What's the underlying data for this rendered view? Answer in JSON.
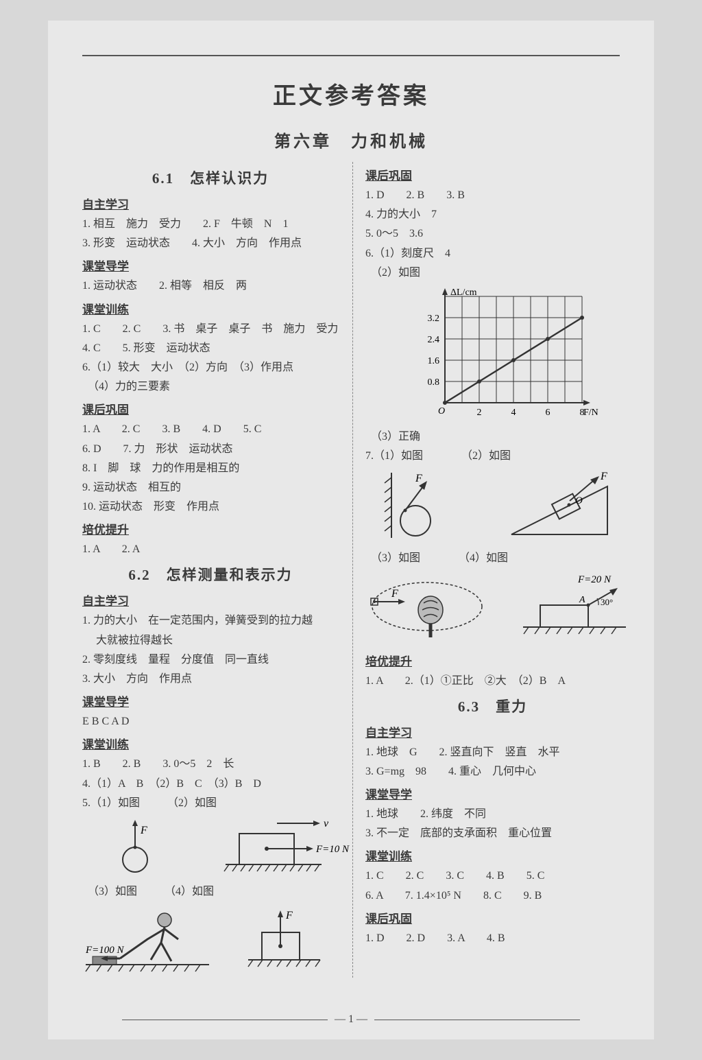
{
  "mainTitle": "正文参考答案",
  "chapterTitle": "第六章　力和机械",
  "footer": "— 1 —",
  "left": {
    "s61_title": "6.1　怎样认识力",
    "h_zzxx": "自主学习",
    "s61_zz_1": "1. 相互　施力　受力　　2. F　牛顿　N　1",
    "s61_zz_2": "3. 形变　运动状态　　4. 大小　方向　作用点",
    "h_ktdx": "课堂导学",
    "s61_dx_1": "1. 运动状态　　2. 相等　相反　两",
    "h_ktxl": "课堂训练",
    "s61_xl_1": "1. C　　2. C　　3. 书　桌子　桌子　书　施力　受力",
    "s61_xl_2": "4. C　　5. 形变　运动状态",
    "s61_xl_3": "6.（1）较大　大小　（2）方向　（3）作用点",
    "s61_xl_4": "　（4）力的三要素",
    "h_khgg": "课后巩固",
    "s61_gg_1": "1. A　　2. C　　3. B　　4. D　　5. C",
    "s61_gg_2": "6. D　　7. 力　形状　运动状态",
    "s61_gg_3": "8. I　脚　球　力的作用是相互的",
    "s61_gg_4": "9. 运动状态　相互的",
    "s61_gg_5": "10. 运动状态　形变　作用点",
    "h_pyts": "培优提升",
    "s61_ts_1": "1. A　　2. A",
    "s62_title": "6.2　怎样测量和表示力",
    "s62_zz_1": "1. 力的大小　在一定范围内，弹簧受到的拉力越",
    "s62_zz_2": "　 大就被拉得越长",
    "s62_zz_3": "2. 零刻度线　量程　分度值　同一直线",
    "s62_zz_4": "3. 大小　方向　作用点",
    "s62_dx_1": "E  B  C  A  D",
    "s62_xl_1": "1. B　　2. B　　3. 0～5　2　长",
    "s62_xl_2": "4.（1）A　B　（2）B　C　（3）B　D",
    "s62_xl_3": "5.（1）如图　　　（2）如图",
    "s62_xl_4": "　（3）如图　　　（4）如图",
    "fig_F": "F",
    "fig_v": "v",
    "fig_F10N": "F=10 N",
    "fig_F100N": "F=100 N"
  },
  "right": {
    "h_khgg": "课后巩固",
    "gg_1": "1. D　　2. B　　3. B",
    "gg_2": "4. 力的大小　7",
    "gg_3": "5. 0～5　3.6",
    "gg_4": "6.（1）刻度尺　4",
    "gg_5": "　（2）如图",
    "gg_6": "　（3）正确",
    "gg_7": "7.（1）如图　　　　（2）如图",
    "gg_8": "　（3）如图　　　　（4）如图",
    "h_pyts": "培优提升",
    "ts_1": "1. A　　2.（1）①正比　②大　（2）B　A",
    "s63_title": "6.3　重力",
    "h_zzxx": "自主学习",
    "s63_zz_1": "1. 地球　G　　2. 竖直向下　竖直　水平",
    "s63_zz_2": "3. G=mg　98　　4. 重心　几何中心",
    "h_ktdx": "课堂导学",
    "s63_dx_1": "1. 地球　　2. 纬度　不同",
    "s63_dx_2": "3. 不一定　底部的支承面积　重心位置",
    "h_ktxl": "课堂训练",
    "s63_xl_1": "1. C　　2. C　　3. C　　4. B　　5. C",
    "s63_xl_2": "6. A　　7. 1.4×10⁵ N　　8. C　　9. B",
    "s63_gg_1": "1. D　　2. D　　3. A　　4. B",
    "chart": {
      "type": "line",
      "ylabel": "ΔL/cm",
      "xlabel": "F/N",
      "xvalues": [
        0,
        2,
        4,
        6,
        8
      ],
      "yvalues": [
        0.8,
        1.6,
        2.4,
        3.2
      ],
      "xlim": [
        0,
        8
      ],
      "ylim": [
        0,
        4
      ],
      "points_x": [
        0,
        2,
        4,
        6,
        8
      ],
      "points_y": [
        0,
        0.8,
        1.6,
        2.4,
        3.2
      ],
      "grid_color": "#333",
      "line_color": "#333",
      "background": "#e8e8e8"
    },
    "fig_F": "F",
    "fig_O": "O",
    "fig_F20N": "F=20 N",
    "fig_A": "A",
    "fig_30": "30°"
  }
}
